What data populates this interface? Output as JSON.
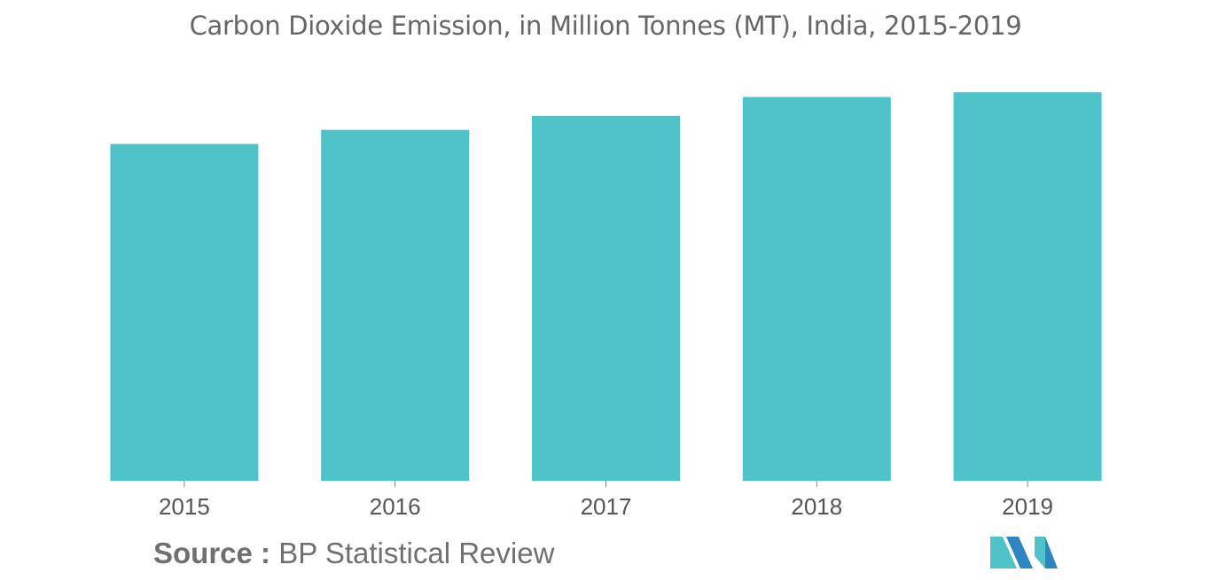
{
  "chart_data": {
    "type": "bar",
    "title": "Carbon Dioxide Emission, in Million Tonnes (MT), India, 2015-2019",
    "categories": [
      "2015",
      "2016",
      "2017",
      "2018",
      "2019"
    ],
    "values": [
      2150,
      2240,
      2330,
      2450,
      2480
    ],
    "ylim": [
      0,
      2600
    ],
    "xlabel": "",
    "ylabel": "",
    "grid": false,
    "legend": "none",
    "bar_color": "#50C2CA"
  },
  "source": {
    "label": "Source :",
    "text": "BP Statistical Review"
  },
  "logo": {
    "icon": "mordor-intelligence-logo-icon",
    "colors": [
      "#50C2CA",
      "#2E86C1"
    ]
  }
}
